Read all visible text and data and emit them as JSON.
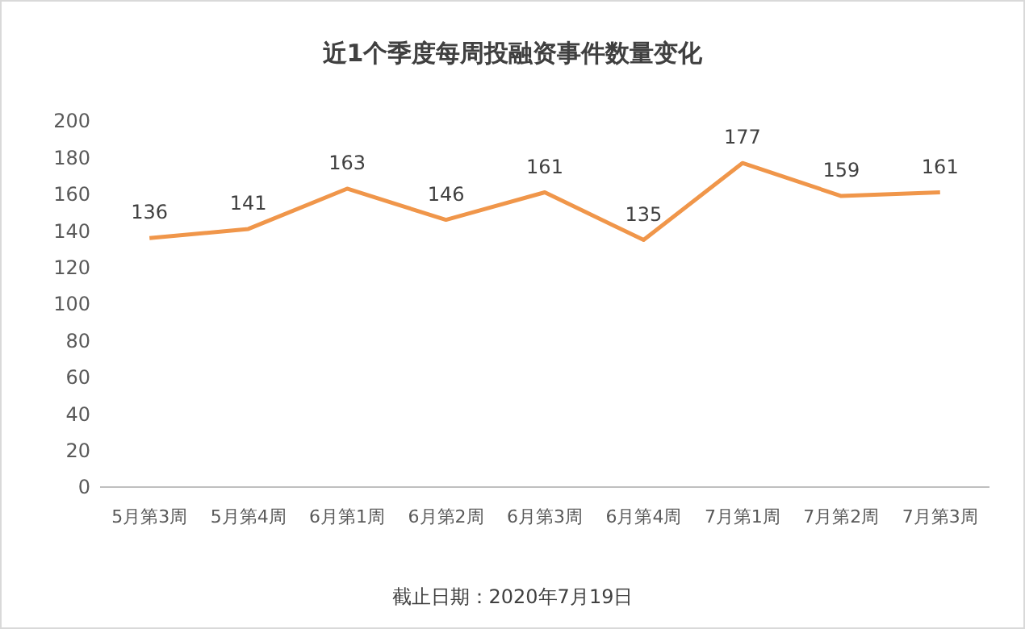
{
  "chart_data": {
    "type": "line",
    "title": "近1个季度每周投融资事件数量变化",
    "categories": [
      "5月第3周",
      "5月第4周",
      "6月第1周",
      "6月第2周",
      "6月第3周",
      "6月第4周",
      "7月第1周",
      "7月第2周",
      "7月第3周"
    ],
    "series": [
      {
        "color": "#f0964a",
        "values": [
          136,
          141,
          163,
          146,
          161,
          135,
          177,
          159,
          161
        ]
      }
    ],
    "ylim": [
      0,
      200
    ],
    "yticks": [
      0,
      20,
      40,
      60,
      80,
      100,
      120,
      140,
      160,
      180,
      200
    ],
    "grid": false,
    "marker": "none",
    "line_style": "solid",
    "data_labels": true,
    "annotations": [
      "截止日期：2020年7月19日"
    ]
  }
}
